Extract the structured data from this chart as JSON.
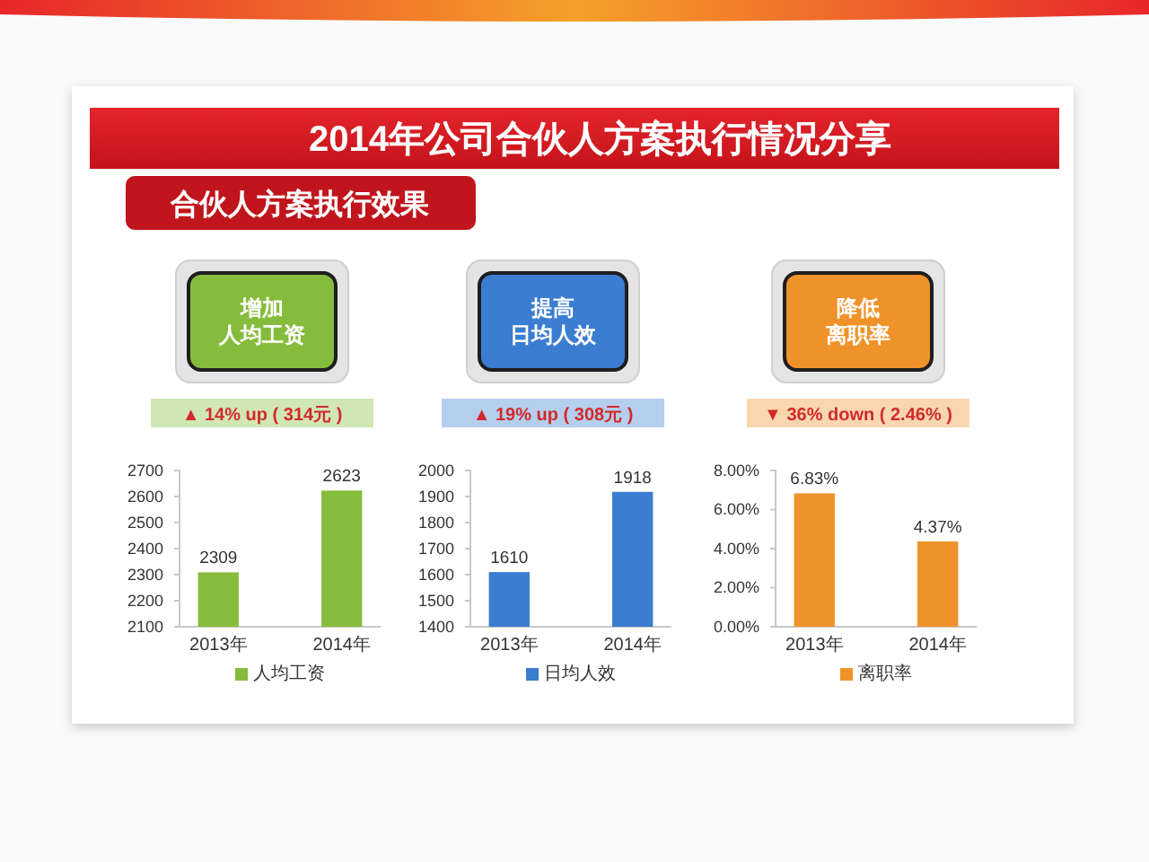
{
  "chart_data": [
    {
      "type": "bar",
      "title": "增加人均工资",
      "subtitle": "▲ 14% up ( 314元 )",
      "annotations": [
        "2014年公司合伙人方案执行情况分享",
        "合伙人方案执行效果"
      ],
      "categories": [
        "2013年",
        "2014年"
      ],
      "series": [
        {
          "name": "人均工资",
          "color": "#86bc3c",
          "values": [
            2309,
            2623
          ]
        }
      ],
      "ylim": [
        2100,
        2700
      ],
      "yticks": [
        2100,
        2200,
        2300,
        2400,
        2500,
        2600,
        2700
      ],
      "data_labels": true,
      "legend": "bottom"
    },
    {
      "type": "bar",
      "title": "提高日均人效",
      "subtitle": "▲ 19% up ( 308元 )",
      "categories": [
        "2013年",
        "2014年"
      ],
      "series": [
        {
          "name": "日均人效",
          "color": "#3b7dd0",
          "values": [
            1610,
            1918
          ]
        }
      ],
      "ylim": [
        1400,
        2000
      ],
      "yticks": [
        1400,
        1500,
        1600,
        1700,
        1800,
        1900,
        2000
      ],
      "data_labels": true,
      "legend": "bottom"
    },
    {
      "type": "bar",
      "title": "降低离职率",
      "subtitle": "▼ 36% down ( 2.46% )",
      "categories": [
        "2013年",
        "2014年"
      ],
      "series": [
        {
          "name": "离职率",
          "color": "#f0922a",
          "values": [
            6.83,
            4.37
          ],
          "value_labels": [
            "6.83%",
            "4.37%"
          ]
        }
      ],
      "ylim": [
        0,
        8
      ],
      "yticks": [
        {
          "value": 0,
          "label": "0.00%"
        },
        {
          "value": 2,
          "label": "2.00%"
        },
        {
          "value": 4,
          "label": "4.00%"
        },
        {
          "value": 6,
          "label": "6.00%"
        },
        {
          "value": 8,
          "label": "8.00%"
        }
      ],
      "legend": "bottom"
    }
  ]
}
